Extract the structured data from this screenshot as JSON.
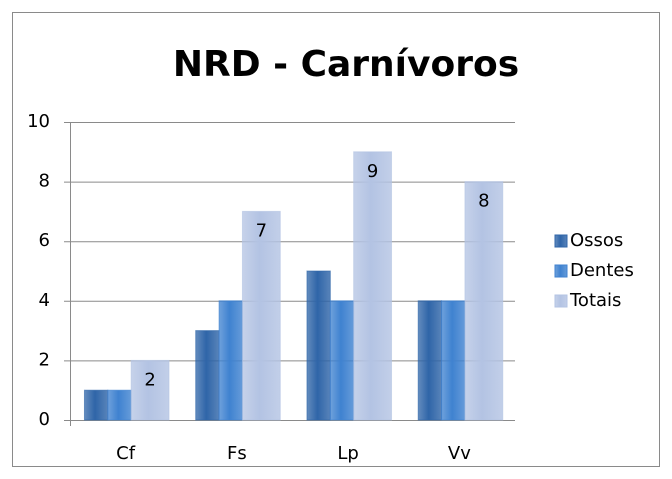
{
  "chart_data": {
    "type": "bar",
    "title": "NRD - Carnívoros",
    "categories": [
      "Cf",
      "Fs",
      "Lp",
      "Vv"
    ],
    "series": [
      {
        "name": "Ossos",
        "color": "#2f65a8",
        "values": [
          1,
          3,
          5,
          4
        ]
      },
      {
        "name": "Dentes",
        "color": "#3f82d0",
        "values": [
          1,
          4,
          4,
          4
        ]
      },
      {
        "name": "Totais",
        "color": "#b3c3e3",
        "values": [
          2,
          7,
          9,
          8
        ]
      }
    ],
    "ylim": [
      0,
      10
    ],
    "yticks": [
      0,
      2,
      4,
      6,
      8,
      10
    ],
    "grid": true,
    "legend": "right"
  }
}
